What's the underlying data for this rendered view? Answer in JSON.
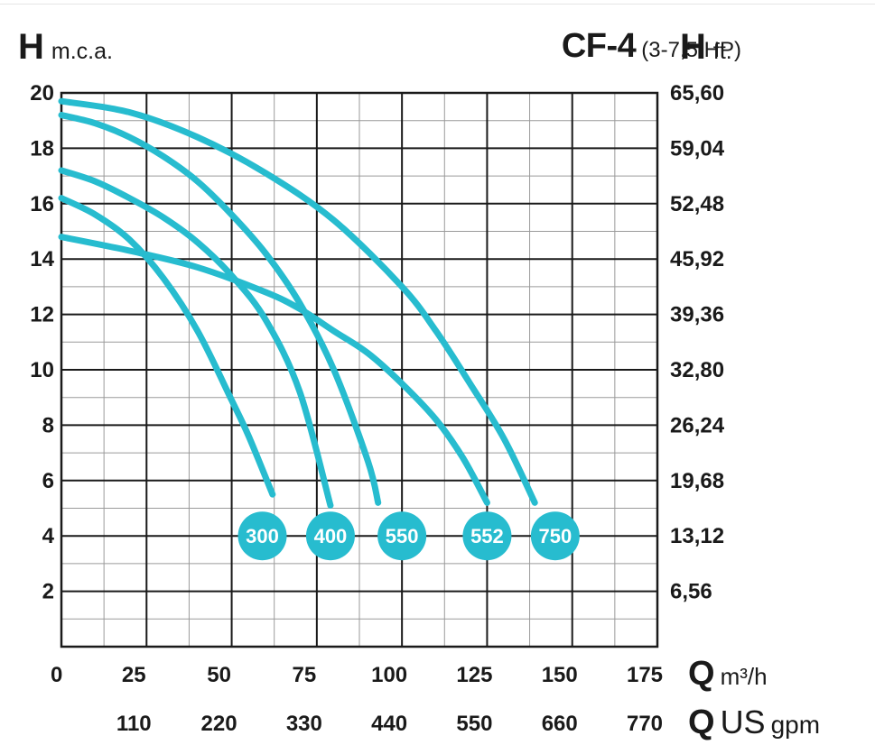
{
  "header": {
    "left_letter": "H",
    "left_unit": "m.c.a.",
    "model": "CF-4",
    "power": "(3-7,5 HP)",
    "right_letter": "H",
    "right_unit": "ft."
  },
  "footer": {
    "q_letter": "Q",
    "q_unit_m3h": "m³/h",
    "q_letter_gpm": "Q",
    "q_unit_us": "US",
    "q_unit_gpm": "gpm"
  },
  "colors": {
    "curve": "#27bccf",
    "grid_major": "#1a1a1a",
    "grid_minor": "#9a9a9a",
    "badge": "#27bccf"
  },
  "chart_data": {
    "type": "line",
    "title": "CF-4 (3-7,5 HP)",
    "xlabel": "Q m³/h",
    "ylabel": "H m.c.a.",
    "xlim": [
      0,
      175
    ],
    "ylim": [
      0,
      20
    ],
    "grid": true,
    "x_ticks": [
      "0",
      "25",
      "50",
      "75",
      "100",
      "125",
      "150",
      "175"
    ],
    "x_tick_values": [
      0,
      25,
      50,
      75,
      100,
      125,
      150,
      175
    ],
    "x2_ticks": [
      "110",
      "220",
      "330",
      "440",
      "550",
      "660",
      "770"
    ],
    "x2_tick_values": [
      25,
      50,
      75,
      100,
      125,
      150,
      175
    ],
    "y_ticks": [
      "2",
      "4",
      "6",
      "8",
      "10",
      "12",
      "14",
      "16",
      "18",
      "20"
    ],
    "y_tick_values": [
      2,
      4,
      6,
      8,
      10,
      12,
      14,
      16,
      18,
      20
    ],
    "y2_ticks": [
      "6,56",
      "13,12",
      "19,68",
      "26,24",
      "32,80",
      "39,36",
      "45,92",
      "52,48",
      "59,04",
      "65,60"
    ],
    "series": [
      {
        "name": "300",
        "label_x": 59,
        "label_y": 4,
        "x": [
          0,
          10,
          20,
          30,
          40,
          50,
          55,
          62
        ],
        "y": [
          16.2,
          15.6,
          14.7,
          13.3,
          11.4,
          8.9,
          7.6,
          5.5
        ]
      },
      {
        "name": "400",
        "label_x": 79,
        "label_y": 4,
        "x": [
          0,
          10,
          20,
          30,
          40,
          50,
          60,
          70,
          79
        ],
        "y": [
          17.2,
          16.8,
          16.2,
          15.5,
          14.6,
          13.4,
          11.8,
          9.2,
          5.1
        ]
      },
      {
        "name": "550",
        "label_x": 100,
        "label_y": 4,
        "x": [
          0,
          10,
          20,
          30,
          40,
          50,
          60,
          70,
          80,
          90,
          93
        ],
        "y": [
          19.2,
          18.9,
          18.4,
          17.7,
          16.8,
          15.6,
          14.2,
          12.4,
          10.0,
          6.7,
          5.2
        ]
      },
      {
        "name": "552",
        "label_x": 125,
        "label_y": 4,
        "x": [
          0,
          20,
          40,
          60,
          70,
          80,
          90,
          100,
          110,
          118,
          125
        ],
        "y": [
          14.8,
          14.3,
          13.7,
          12.8,
          12.2,
          11.4,
          10.6,
          9.5,
          8.2,
          6.8,
          5.2
        ]
      },
      {
        "name": "750",
        "label_x": 145,
        "label_y": 4,
        "x": [
          0,
          20,
          40,
          60,
          80,
          100,
          110,
          120,
          130,
          139
        ],
        "y": [
          19.7,
          19.3,
          18.4,
          17.1,
          15.4,
          13.0,
          11.4,
          9.5,
          7.5,
          5.2
        ]
      }
    ]
  }
}
